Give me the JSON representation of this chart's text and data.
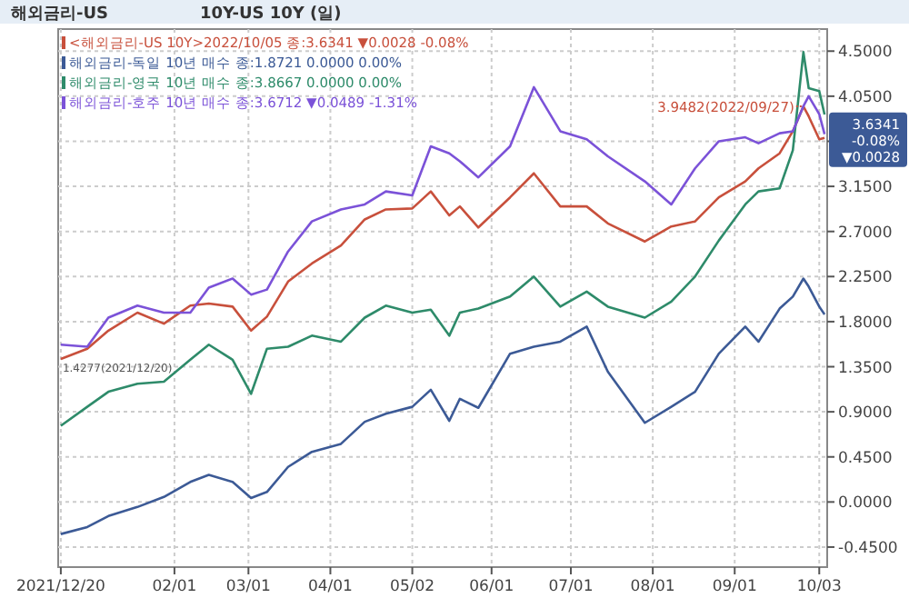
{
  "chart_data": {
    "type": "line",
    "title": "해외금리-US",
    "subtitle": "10Y-US 10Y (일)",
    "x": [
      "2021-12-20",
      "2021-12-30",
      "2022-01-07",
      "2022-01-18",
      "2022-01-28",
      "2022-02-07",
      "2022-02-14",
      "2022-02-23",
      "2022-03-02",
      "2022-03-08",
      "2022-03-16",
      "2022-03-25",
      "2022-04-05",
      "2022-04-14",
      "2022-04-22",
      "2022-05-02",
      "2022-05-09",
      "2022-05-16",
      "2022-05-20",
      "2022-05-27",
      "2022-06-08",
      "2022-06-17",
      "2022-06-27",
      "2022-07-07",
      "2022-07-15",
      "2022-07-29",
      "2022-08-08",
      "2022-08-17",
      "2022-08-26",
      "2022-09-05",
      "2022-09-10",
      "2022-09-18",
      "2022-09-23",
      "2022-09-27",
      "2022-09-29",
      "2022-10-03",
      "2022-10-05"
    ],
    "series": [
      {
        "name": "<해외금리-US 10Y>2022/10/05 종:3.6341 ▼0.0028 -0.08%",
        "color": "#c8503c",
        "values": [
          1.4277,
          1.53,
          1.71,
          1.89,
          1.78,
          1.96,
          1.98,
          1.95,
          1.71,
          1.85,
          2.2,
          2.38,
          2.56,
          2.82,
          2.92,
          2.93,
          3.1,
          2.86,
          2.95,
          2.74,
          3.04,
          3.28,
          2.95,
          2.95,
          2.78,
          2.6,
          2.75,
          2.8,
          3.04,
          3.2,
          3.33,
          3.48,
          3.7,
          3.9482,
          3.85,
          3.62,
          3.6341
        ]
      },
      {
        "name": "해외금리-독일 10년 매수 종:1.8721 0.0000 0.00%",
        "color": "#3c5a96",
        "values": [
          -0.32,
          -0.25,
          -0.14,
          -0.05,
          0.05,
          0.2,
          0.27,
          0.2,
          0.04,
          0.1,
          0.35,
          0.5,
          0.58,
          0.8,
          0.88,
          0.95,
          1.12,
          0.81,
          1.03,
          0.94,
          1.48,
          1.55,
          1.6,
          1.75,
          1.3,
          0.79,
          0.95,
          1.1,
          1.48,
          1.75,
          1.6,
          1.93,
          2.05,
          2.23,
          2.15,
          1.95,
          1.8721
        ]
      },
      {
        "name": "해외금리-영국 10년 매수 종:3.8667 0.0000 0.00%",
        "color": "#2e8b6a",
        "values": [
          0.76,
          0.95,
          1.1,
          1.18,
          1.2,
          1.42,
          1.57,
          1.42,
          1.08,
          1.53,
          1.55,
          1.66,
          1.6,
          1.84,
          1.96,
          1.89,
          1.92,
          1.66,
          1.89,
          1.93,
          2.05,
          2.25,
          1.95,
          2.1,
          1.95,
          1.84,
          2.0,
          2.25,
          2.61,
          2.97,
          3.1,
          3.13,
          3.51,
          4.49,
          4.13,
          4.1,
          3.8667
        ]
      },
      {
        "name": "해외금리-호주 10년 매수 종:3.6712 ▼0.0489 -1.31%",
        "color": "#7b52d8",
        "values": [
          1.57,
          1.55,
          1.84,
          1.96,
          1.89,
          1.89,
          2.14,
          2.23,
          2.07,
          2.12,
          2.5,
          2.8,
          2.92,
          2.97,
          3.1,
          3.06,
          3.55,
          3.48,
          3.4,
          3.24,
          3.55,
          4.14,
          3.7,
          3.62,
          3.45,
          3.2,
          2.97,
          3.33,
          3.6,
          3.64,
          3.58,
          3.68,
          3.7,
          3.95,
          4.05,
          3.87,
          3.6712
        ]
      }
    ],
    "xlim": [
      "2021-12-19",
      "2022-10-06"
    ],
    "xticks": [
      {
        "value": "2021-12-20",
        "label": "2021/12/20"
      },
      {
        "value": "2022-02-01",
        "label": "02/01"
      },
      {
        "value": "2022-03-01",
        "label": "03/01"
      },
      {
        "value": "2022-04-01",
        "label": "04/01"
      },
      {
        "value": "2022-05-02",
        "label": "05/02"
      },
      {
        "value": "2022-06-01",
        "label": "06/01"
      },
      {
        "value": "2022-07-01",
        "label": "07/01"
      },
      {
        "value": "2022-08-01",
        "label": "08/01"
      },
      {
        "value": "2022-09-01",
        "label": "09/01"
      },
      {
        "value": "2022-10-03",
        "label": "10/03"
      }
    ],
    "ylim": [
      -0.65,
      4.72
    ],
    "yticks": [
      {
        "value": 4.5,
        "label": "4.5000"
      },
      {
        "value": 4.05,
        "label": "4.0500"
      },
      {
        "value": 3.6,
        "label": null
      },
      {
        "value": 3.15,
        "label": "3.1500"
      },
      {
        "value": 2.7,
        "label": "2.7000"
      },
      {
        "value": 2.25,
        "label": "2.2500"
      },
      {
        "value": 1.8,
        "label": "1.8000"
      },
      {
        "value": 1.35,
        "label": "1.3500"
      },
      {
        "value": 0.9,
        "label": "0.9000"
      },
      {
        "value": 0.45,
        "label": "0.4500"
      },
      {
        "value": 0,
        "label": "0.0000"
      },
      {
        "value": -0.45,
        "label": "-0.4500"
      }
    ],
    "annotations": [
      {
        "text": "3.9482(2022/09/27)",
        "x": "2022-09-27",
        "y": 3.9482
      },
      {
        "text": "1.4277(2021/12/20)",
        "x": "2021-12-20",
        "y": 1.4277
      },
      {
        "text": "3.6341 -0.08% ▼0.0028",
        "x": "2022-10-05",
        "y": 3.6341
      }
    ],
    "grid": true,
    "legend": "top left",
    "marker": "none",
    "line_style": "solid"
  }
}
